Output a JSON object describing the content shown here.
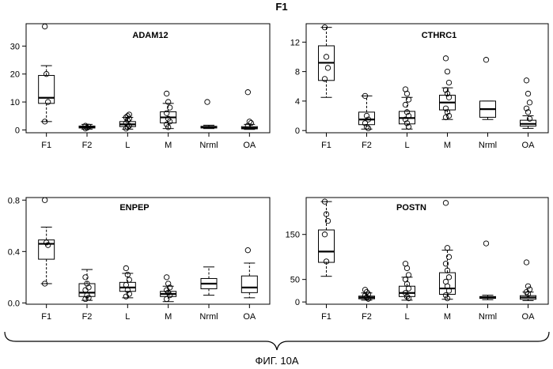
{
  "figure": {
    "title": "F1",
    "caption": "ФИГ. 10А"
  },
  "chart_data": [
    {
      "type": "box",
      "title": "ADAM12",
      "categories": [
        "F1",
        "F2",
        "L",
        "M",
        "Nrml",
        "OA"
      ],
      "ylim": [
        -1,
        38
      ],
      "yticks": [
        0,
        10,
        20,
        30
      ],
      "grid": false,
      "boxes": [
        {
          "whislo": 3,
          "q1": 9.5,
          "med": 11.5,
          "q3": 19.5,
          "whishi": 23,
          "outliers": [
            37,
            20,
            10,
            3
          ]
        },
        {
          "whislo": 0.3,
          "q1": 0.7,
          "med": 1,
          "q3": 1.4,
          "whishi": 2,
          "outliers": [
            0.5,
            0.8,
            1.2,
            1.5
          ]
        },
        {
          "whislo": 0.3,
          "q1": 1.2,
          "med": 2,
          "q3": 3,
          "whishi": 4.5,
          "outliers": [
            0.5,
            1,
            1.5,
            2.5,
            3.5,
            4,
            4.5,
            5,
            5.5
          ]
        },
        {
          "whislo": 0.5,
          "q1": 2.5,
          "med": 4.5,
          "q3": 6.5,
          "whishi": 9.5,
          "outliers": [
            13,
            10,
            8,
            6,
            4,
            3,
            2,
            1
          ]
        },
        {
          "whislo": 0.5,
          "q1": 0.7,
          "med": 1,
          "q3": 1.3,
          "whishi": 1.7,
          "outliers": [
            10
          ]
        },
        {
          "whislo": 0.2,
          "q1": 0.4,
          "med": 0.7,
          "q3": 1.2,
          "whishi": 2,
          "outliers": [
            13.5,
            3,
            2.5,
            1.5
          ]
        }
      ]
    },
    {
      "type": "box",
      "title": "CTHRC1",
      "categories": [
        "F1",
        "F2",
        "L",
        "M",
        "Nrml",
        "OA"
      ],
      "ylim": [
        -0.3,
        14.5
      ],
      "yticks": [
        0,
        4,
        8,
        12
      ],
      "grid": false,
      "boxes": [
        {
          "whislo": 4.5,
          "q1": 6.8,
          "med": 9.2,
          "q3": 11.5,
          "whishi": 14,
          "outliers": [
            14,
            10,
            8.5,
            7
          ]
        },
        {
          "whislo": 0.2,
          "q1": 0.8,
          "med": 1.5,
          "q3": 2.5,
          "whishi": 4.7,
          "outliers": [
            4.7,
            2,
            1.5,
            1,
            0.5,
            0.3
          ]
        },
        {
          "whislo": 0.2,
          "q1": 0.9,
          "med": 1.7,
          "q3": 2.6,
          "whishi": 4.5,
          "outliers": [
            5.6,
            5,
            4.2,
            3.5,
            2.5,
            2,
            1.5,
            1,
            0.5
          ]
        },
        {
          "whislo": 1.5,
          "q1": 2.8,
          "med": 3.8,
          "q3": 4.8,
          "whishi": 5.8,
          "outliers": [
            9.8,
            8,
            6.5,
            5.5,
            5,
            4.5,
            3,
            2.5,
            2,
            1.8
          ]
        },
        {
          "whislo": 1.5,
          "q1": 1.8,
          "med": 2.9,
          "q3": 4,
          "whishi": 4,
          "outliers": [
            9.6
          ]
        },
        {
          "whislo": 0.3,
          "q1": 0.6,
          "med": 0.9,
          "q3": 1.4,
          "whishi": 2,
          "outliers": [
            6.8,
            5,
            3.8,
            3,
            2.5,
            1.6
          ]
        }
      ]
    },
    {
      "type": "box",
      "title": "ENPEP",
      "categories": [
        "F1",
        "F2",
        "L",
        "M",
        "Nrml",
        "OA"
      ],
      "ylim": [
        -0.01,
        0.82
      ],
      "yticks": [
        0.0,
        0.4,
        0.8
      ],
      "ytick_labels": [
        "0.0",
        "0.4",
        "0.8"
      ],
      "grid": false,
      "boxes": [
        {
          "whislo": 0.15,
          "q1": 0.34,
          "med": 0.46,
          "q3": 0.49,
          "whishi": 0.59,
          "outliers": [
            0.8,
            0.47,
            0.45,
            0.15
          ]
        },
        {
          "whislo": 0.02,
          "q1": 0.05,
          "med": 0.08,
          "q3": 0.15,
          "whishi": 0.26,
          "outliers": [
            0.2,
            0.15,
            0.12,
            0.1,
            0.06,
            0.04,
            0.03
          ]
        },
        {
          "whislo": 0.04,
          "q1": 0.09,
          "med": 0.12,
          "q3": 0.16,
          "whishi": 0.23,
          "outliers": [
            0.27,
            0.22,
            0.18,
            0.14,
            0.1,
            0.07,
            0.05
          ]
        },
        {
          "whislo": 0.01,
          "q1": 0.05,
          "med": 0.07,
          "q3": 0.09,
          "whishi": 0.13,
          "outliers": [
            0.2,
            0.15,
            0.12,
            0.1,
            0.08,
            0.06,
            0.03
          ]
        },
        {
          "whislo": 0.06,
          "q1": 0.11,
          "med": 0.15,
          "q3": 0.19,
          "whishi": 0.28,
          "outliers": []
        },
        {
          "whislo": 0.04,
          "q1": 0.08,
          "med": 0.12,
          "q3": 0.21,
          "whishi": 0.31,
          "outliers": [
            0.41
          ]
        }
      ]
    },
    {
      "type": "box",
      "title": "POSTN",
      "categories": [
        "F1",
        "F2",
        "L",
        "M",
        "Nrml",
        "OA"
      ],
      "ylim": [
        -5,
        232
      ],
      "yticks": [
        0,
        50,
        150
      ],
      "grid": false,
      "boxes": [
        {
          "whislo": 57,
          "q1": 88,
          "med": 112,
          "q3": 160,
          "whishi": 223,
          "outliers": [
            223,
            195,
            180,
            150,
            90
          ]
        },
        {
          "whislo": 4,
          "q1": 7,
          "med": 10,
          "q3": 13,
          "whishi": 20,
          "outliers": [
            27,
            22,
            18,
            14,
            10,
            7
          ]
        },
        {
          "whislo": 4,
          "q1": 12,
          "med": 20,
          "q3": 35,
          "whishi": 55,
          "outliers": [
            85,
            75,
            60,
            50,
            40,
            30,
            20,
            12,
            8
          ]
        },
        {
          "whislo": 6,
          "q1": 17,
          "med": 30,
          "q3": 65,
          "whishi": 115,
          "outliers": [
            220,
            120,
            100,
            85,
            70,
            55,
            45,
            35,
            25,
            15,
            8
          ]
        },
        {
          "whislo": 5,
          "q1": 8,
          "med": 10,
          "q3": 12,
          "whishi": 15,
          "outliers": [
            130
          ]
        },
        {
          "whislo": 3,
          "q1": 6,
          "med": 10,
          "q3": 14,
          "whishi": 22,
          "outliers": [
            88,
            35,
            28,
            22,
            18
          ]
        }
      ]
    }
  ]
}
